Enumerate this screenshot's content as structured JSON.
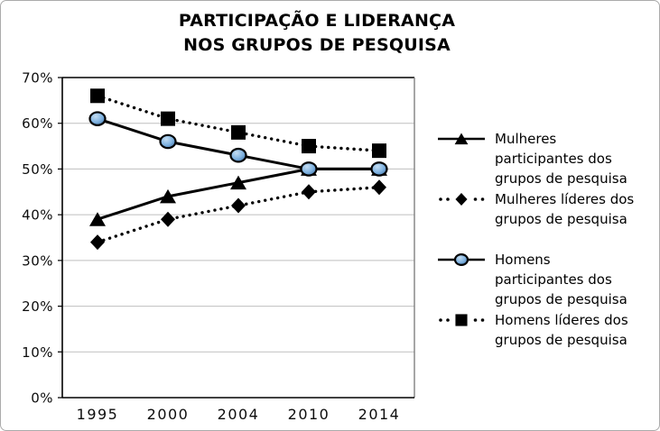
{
  "chart_data": {
    "type": "line",
    "title": "PARTICIPAÇÃO E LIDERANÇA NOS GRUPOS DE PESQUISA",
    "title_lines": [
      "PARTICIPAÇÃO E LIDERANÇA",
      "NOS GRUPOS DE PESQUISA"
    ],
    "categories": [
      "1995",
      "2000",
      "2004",
      "2010",
      "2014"
    ],
    "series": [
      {
        "name": "Mulheres participantes dos grupos de pesquisa",
        "legend_lines": [
          "Mulheres",
          "participantes dos",
          "grupos de pesquisa"
        ],
        "values": [
          39,
          44,
          47,
          50,
          50
        ],
        "line_style": "solid",
        "marker": "triangle",
        "marker_color": "#000000"
      },
      {
        "name": "Mulheres líderes dos grupos de pesquisa",
        "legend_lines": [
          "Mulheres líderes dos",
          "grupos de pesquisa"
        ],
        "values": [
          34,
          39,
          42,
          45,
          46
        ],
        "line_style": "dotted",
        "marker": "diamond",
        "marker_color": "#000000"
      },
      {
        "name": "Homens participantes dos grupos de pesquisa",
        "legend_lines": [
          "Homens",
          "participantes dos",
          "grupos de pesquisa"
        ],
        "values": [
          61,
          56,
          53,
          50,
          50
        ],
        "line_style": "solid",
        "marker": "circle",
        "marker_color": "#7FB2E0"
      },
      {
        "name": "Homens líderes dos grupos de pesquisa",
        "legend_lines": [
          "Homens líderes dos",
          "grupos de pesquisa"
        ],
        "values": [
          66,
          61,
          58,
          55,
          54
        ],
        "line_style": "dotted",
        "marker": "square",
        "marker_color": "#000000"
      }
    ],
    "y_axis": {
      "min": 0,
      "max": 70,
      "step": 10,
      "tick_labels": [
        "0%",
        "10%",
        "20%",
        "30%",
        "40%",
        "50%",
        "60%",
        "70%"
      ]
    },
    "x_axis": {
      "labels": [
        "1995",
        "2000",
        "2004",
        "2010",
        "2014"
      ]
    },
    "legend_position": "right",
    "grid": true,
    "colors": {
      "line": "#000000",
      "circle_fill_light": "#C4DDF2",
      "circle_fill_mid": "#7FB2E0",
      "circle_fill_dark": "#3E6FA3",
      "gridline": "#BFBFBF",
      "axis": "#000000",
      "plot_border_right": "#808080",
      "outer_border": "#ABABAB",
      "text": "#000000"
    }
  }
}
